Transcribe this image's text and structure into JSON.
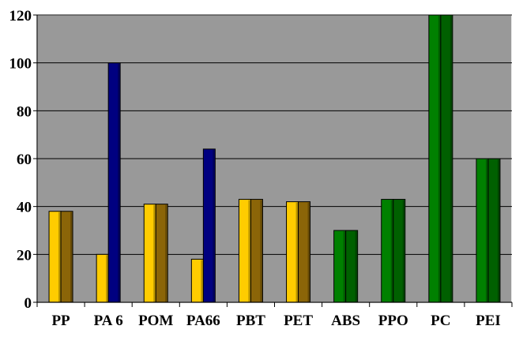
{
  "chart_data": {
    "type": "bar",
    "title": "",
    "xlabel": "",
    "ylabel": "",
    "ylim": [
      0,
      120
    ],
    "yticks": [
      0,
      20,
      40,
      60,
      80,
      100,
      120
    ],
    "ytick_labels": [
      "0",
      "20",
      "40",
      "60",
      "80",
      "100",
      "120"
    ],
    "grid": true,
    "legend": "none",
    "style": "3d-columns",
    "categories": [
      "PP",
      "PA 6",
      "POM",
      "PA66",
      "PBT",
      "PET",
      "ABS",
      "PPO",
      "PC",
      "PEI"
    ],
    "series": [
      {
        "values": [
          38,
          20,
          41,
          18,
          43,
          42,
          30,
          43,
          120,
          60
        ],
        "colors": [
          "#ffcc00",
          "#ffcc00",
          "#ffcc00",
          "#ffcc00",
          "#ffcc00",
          "#ffcc00",
          "#008000",
          "#008000",
          "#008000",
          "#008000"
        ]
      },
      {
        "values": [
          38,
          100,
          41,
          64,
          43,
          42,
          30,
          43,
          120,
          60
        ],
        "colors": [
          "#8b6508",
          "#000080",
          "#8b6508",
          "#000080",
          "#8b6508",
          "#8b6508",
          "#006000",
          "#006000",
          "#006000",
          "#006000"
        ]
      }
    ],
    "colors": {
      "plot_background": "#999999",
      "gridline": "#000000",
      "axis": "#000000",
      "frame": "#ffffff"
    }
  }
}
